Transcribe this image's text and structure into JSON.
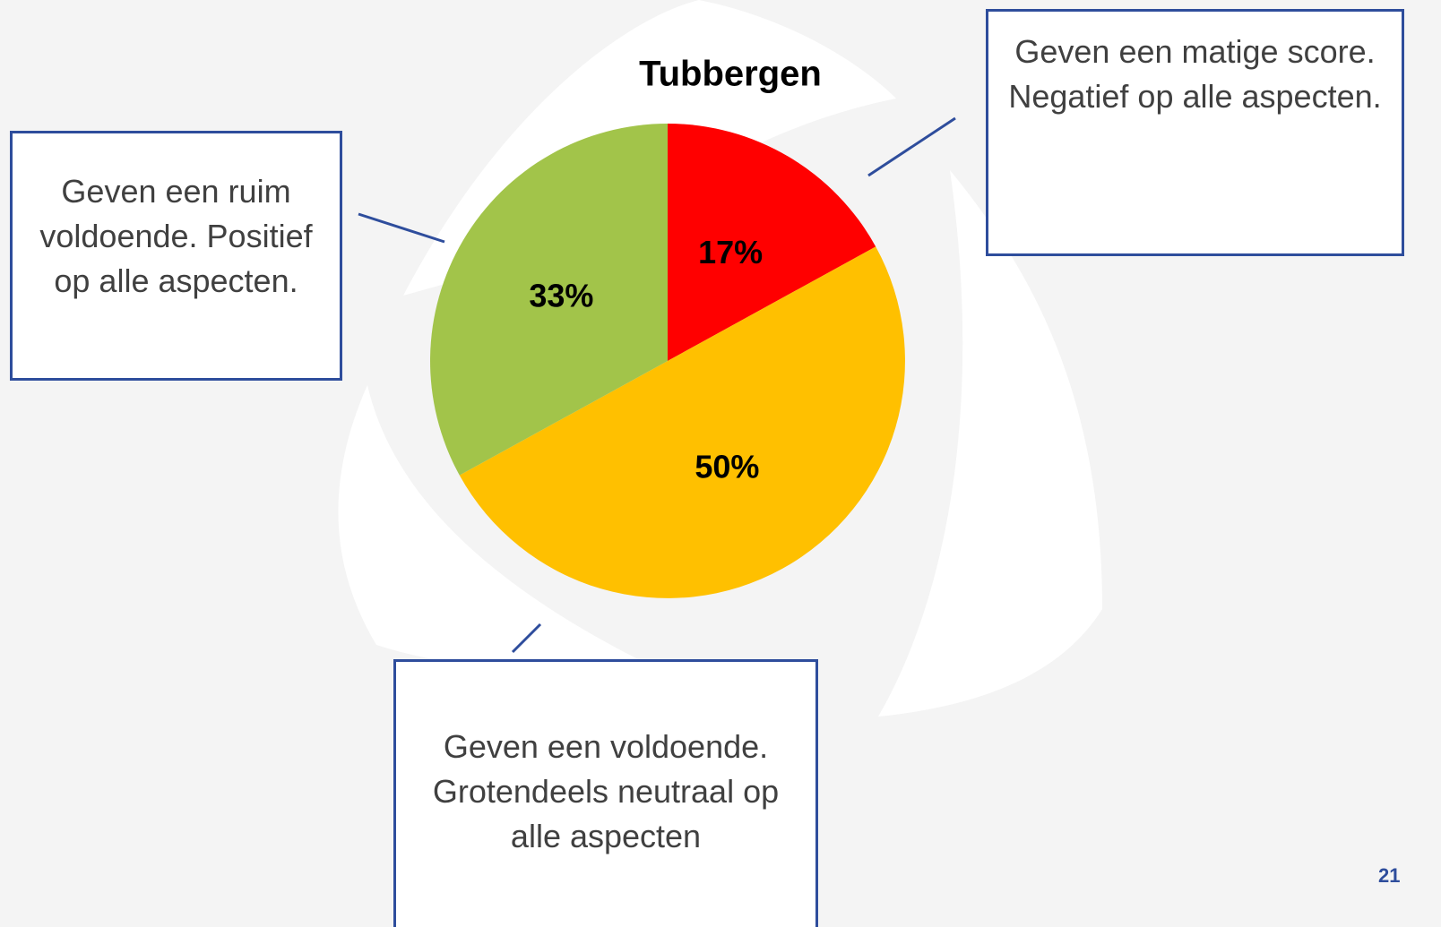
{
  "chart_data": {
    "type": "pie",
    "title": "Tubbergen",
    "values": [
      17,
      50,
      33
    ],
    "value_labels": [
      "17%",
      "50%",
      "33%"
    ],
    "colors": [
      "#ff0000",
      "#ffc000",
      "#a2c44a"
    ],
    "annotations": [
      "Geven een matige score. Negatief op alle aspecten.",
      "Geven een voldoende. Grotendeels neutraal op alle aspecten",
      "Geven een ruim voldoende. Positief op alle aspecten."
    ]
  },
  "page_number": "21"
}
